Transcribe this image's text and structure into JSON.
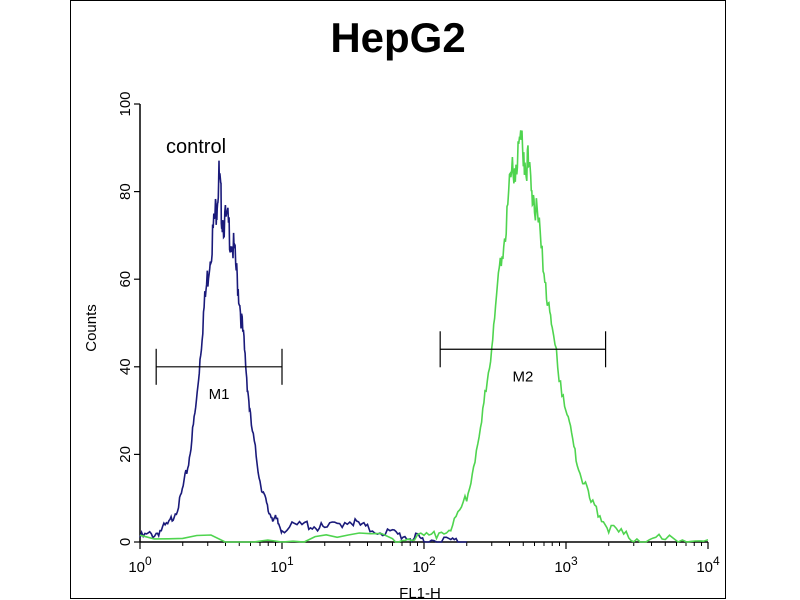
{
  "chart_data": {
    "type": "line",
    "title": "HepG2",
    "xlabel": "FL1-H",
    "ylabel": "Counts",
    "x_scale": "log",
    "xlim": [
      1,
      10000
    ],
    "ylim": [
      0,
      100
    ],
    "x_ticks": [
      {
        "value": 1,
        "base": "10",
        "exp": "0"
      },
      {
        "value": 10,
        "base": "10",
        "exp": "1"
      },
      {
        "value": 100,
        "base": "10",
        "exp": "2"
      },
      {
        "value": 1000,
        "base": "10",
        "exp": "3"
      },
      {
        "value": 10000,
        "base": "10",
        "exp": "4"
      }
    ],
    "y_ticks": [
      0,
      20,
      40,
      60,
      80,
      100
    ],
    "annotation": "control",
    "series": [
      {
        "name": "control",
        "color": "#1a1a7a",
        "x": [
          1,
          1.3,
          1.6,
          1.9,
          2.2,
          2.5,
          2.8,
          3.1,
          3.4,
          3.6,
          3.8,
          4.2,
          4.6,
          5.0,
          5.5,
          6.0,
          7.0,
          8.0,
          9.0,
          10,
          15,
          20,
          30,
          40,
          60,
          80,
          100,
          150,
          200
        ],
        "y": [
          1,
          2,
          4,
          9,
          18,
          32,
          52,
          65,
          75,
          83,
          74,
          72,
          66,
          56,
          42,
          28,
          14,
          7,
          5,
          3,
          4,
          3,
          5,
          3,
          2,
          1,
          0.5,
          0.3,
          0
        ]
      },
      {
        "name": "",
        "color": "#4fd44f",
        "x": [
          1,
          10,
          60,
          100,
          150,
          200,
          250,
          300,
          350,
          400,
          450,
          500,
          550,
          600,
          700,
          800,
          1000,
          1200,
          1500,
          2000,
          3000,
          5000,
          10000
        ],
        "y": [
          0.5,
          0.5,
          1,
          1,
          3,
          10,
          25,
          45,
          65,
          80,
          88,
          90,
          85,
          78,
          62,
          48,
          30,
          18,
          9,
          3,
          1,
          0.5,
          0.5
        ]
      }
    ],
    "markers": [
      {
        "label": "M1",
        "x_start": 1.3,
        "x_end": 10,
        "y": 40
      },
      {
        "label": "M2",
        "x_start": 130,
        "x_end": 1900,
        "y": 44
      }
    ]
  }
}
